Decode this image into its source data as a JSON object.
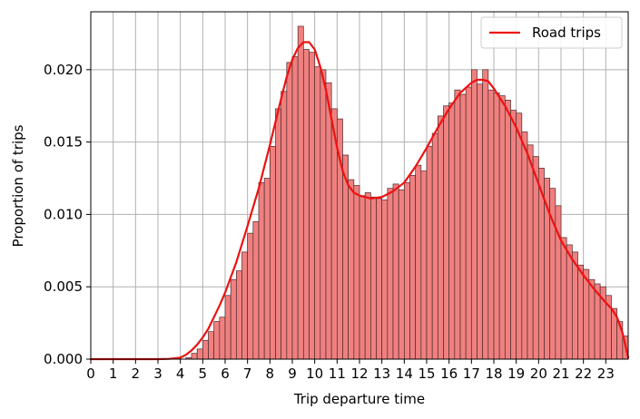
{
  "chart_data": {
    "type": "bar",
    "title": "",
    "xlabel": "Trip departure time",
    "ylabel": "Proportion of trips",
    "xlim": [
      0,
      24
    ],
    "ylim": [
      0,
      0.024
    ],
    "x_ticks": [
      "0",
      "1",
      "2",
      "3",
      "4",
      "5",
      "6",
      "7",
      "8",
      "9",
      "10",
      "11",
      "12",
      "13",
      "14",
      "15",
      "16",
      "17",
      "18",
      "19",
      "20",
      "21",
      "22",
      "23"
    ],
    "y_ticks": [
      "0.000",
      "0.005",
      "0.010",
      "0.015",
      "0.020"
    ],
    "y_tick_values": [
      0,
      0.005,
      0.01,
      0.015,
      0.02
    ],
    "grid": true,
    "legend_position": "top-right",
    "bar_width": 0.25,
    "bar_color": "#f08080",
    "bar_edge_color": "#4a2a2a",
    "line_color": "#ee1111",
    "histogram": {
      "bin_start": [
        4.25,
        4.5,
        4.75,
        5,
        5.25,
        5.5,
        5.75,
        6,
        6.25,
        6.5,
        6.75,
        7,
        7.25,
        7.5,
        7.75,
        8,
        8.25,
        8.5,
        8.75,
        9,
        9.25,
        9.5,
        9.75,
        10,
        10.25,
        10.5,
        10.75,
        11,
        11.25,
        11.5,
        11.75,
        12,
        12.25,
        12.5,
        12.75,
        13,
        13.25,
        13.5,
        13.75,
        14,
        14.25,
        14.5,
        14.75,
        15,
        15.25,
        15.5,
        15.75,
        16,
        16.25,
        16.5,
        16.75,
        17,
        17.25,
        17.5,
        17.75,
        18,
        18.25,
        18.5,
        18.75,
        19,
        19.25,
        19.5,
        19.75,
        20,
        20.25,
        20.5,
        20.75,
        21,
        21.25,
        21.5,
        21.75,
        22,
        22.25,
        22.5,
        22.75,
        23,
        23.25,
        23.5,
        23.75
      ],
      "values": [
        0.0001,
        0.0004,
        0.0007,
        0.0013,
        0.0019,
        0.0026,
        0.0029,
        0.0044,
        0.0055,
        0.0061,
        0.0074,
        0.0087,
        0.0095,
        0.0122,
        0.0125,
        0.0147,
        0.0173,
        0.0185,
        0.0205,
        0.0209,
        0.023,
        0.0214,
        0.0212,
        0.0202,
        0.02,
        0.0191,
        0.0173,
        0.0166,
        0.0141,
        0.0124,
        0.012,
        0.0113,
        0.0115,
        0.0112,
        0.0111,
        0.011,
        0.0118,
        0.0121,
        0.0117,
        0.0122,
        0.0127,
        0.0134,
        0.013,
        0.0147,
        0.0156,
        0.0168,
        0.0175,
        0.0177,
        0.0186,
        0.0183,
        0.0188,
        0.02,
        0.019,
        0.02,
        0.0186,
        0.0184,
        0.0182,
        0.0179,
        0.0172,
        0.017,
        0.0157,
        0.0148,
        0.014,
        0.0132,
        0.0125,
        0.0118,
        0.0106,
        0.0084,
        0.0079,
        0.0074,
        0.0065,
        0.0062,
        0.0055,
        0.0052,
        0.005,
        0.0044,
        0.0035,
        0.0026,
        0.0016
      ]
    },
    "series": [
      {
        "name": "Road trips",
        "x": [
          0,
          1,
          2,
          3,
          3.5,
          4,
          4.25,
          4.5,
          4.75,
          5,
          5.25,
          5.5,
          5.75,
          6,
          6.5,
          7,
          7.5,
          8,
          8.25,
          8.5,
          8.75,
          9,
          9.25,
          9.5,
          9.75,
          10,
          10.25,
          10.5,
          10.75,
          11,
          11.25,
          11.5,
          11.75,
          12,
          12.5,
          13,
          13.5,
          14,
          14.5,
          15,
          15.5,
          16,
          16.5,
          17,
          17.25,
          17.5,
          17.75,
          18,
          18.5,
          19,
          19.5,
          20,
          20.5,
          21,
          21.5,
          22,
          22.5,
          23,
          23.25,
          23.5,
          23.75,
          24
        ],
        "y": [
          0,
          0,
          0,
          0,
          2e-05,
          0.0001,
          0.0003,
          0.0006,
          0.001,
          0.0015,
          0.0021,
          0.0029,
          0.0037,
          0.0046,
          0.0067,
          0.0092,
          0.0118,
          0.0148,
          0.0164,
          0.018,
          0.0195,
          0.0207,
          0.0215,
          0.0219,
          0.0219,
          0.0214,
          0.0202,
          0.0186,
          0.0166,
          0.0146,
          0.013,
          0.012,
          0.0115,
          0.0113,
          0.0111,
          0.0112,
          0.0116,
          0.0122,
          0.0133,
          0.0146,
          0.016,
          0.0173,
          0.0184,
          0.0191,
          0.0193,
          0.0193,
          0.0192,
          0.0187,
          0.0175,
          0.016,
          0.0142,
          0.0121,
          0.01,
          0.0082,
          0.0069,
          0.0058,
          0.0048,
          0.0039,
          0.0035,
          0.0029,
          0.0018,
          0.0001
        ]
      }
    ]
  }
}
